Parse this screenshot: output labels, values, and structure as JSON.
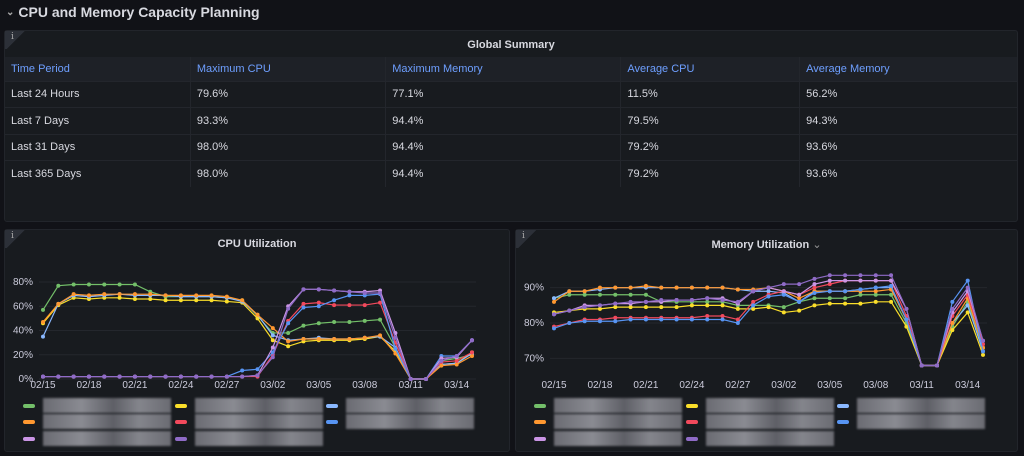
{
  "section": {
    "title": "CPU and Memory Capacity Planning"
  },
  "summary": {
    "title": "Global Summary",
    "info_icon": "i",
    "columns": [
      "Time Period",
      "Maximum CPU",
      "Maximum Memory",
      "Average CPU",
      "Average Memory"
    ],
    "rows": [
      [
        "Last 24 Hours",
        "79.6%",
        "77.1%",
        "11.5%",
        "56.2%"
      ],
      [
        "Last 7 Days",
        "93.3%",
        "94.4%",
        "79.5%",
        "94.3%"
      ],
      [
        "Last 31 Days",
        "98.0%",
        "94.4%",
        "79.2%",
        "93.6%"
      ],
      [
        "Last 365 Days",
        "98.0%",
        "94.4%",
        "79.2%",
        "93.6%"
      ]
    ]
  },
  "cpu_panel": {
    "title": "CPU Utilization",
    "info_icon": "i"
  },
  "mem_panel": {
    "title": "Memory Utilization",
    "menu_icon": "chevron-down-icon",
    "info_icon": "i"
  },
  "chart_data": [
    {
      "type": "line",
      "title": "CPU Utilization",
      "x": [
        "02/15",
        "02/16",
        "02/17",
        "02/18",
        "02/19",
        "02/20",
        "02/21",
        "02/22",
        "02/23",
        "02/24",
        "02/25",
        "02/26",
        "02/27",
        "02/28",
        "03/01",
        "03/02",
        "03/03",
        "03/04",
        "03/05",
        "03/06",
        "03/07",
        "03/08",
        "03/09",
        "03/10",
        "03/11",
        "03/12",
        "03/13",
        "03/14",
        "03/15"
      ],
      "xticks": [
        "02/15",
        "02/18",
        "02/21",
        "02/24",
        "02/27",
        "03/02",
        "03/05",
        "03/08",
        "03/11",
        "03/14"
      ],
      "yticks": [
        "0%",
        "20%",
        "40%",
        "60%",
        "80%"
      ],
      "ylim": [
        0,
        85
      ],
      "legend": "bottom",
      "series": [
        {
          "color": "#73bf69",
          "values": [
            57,
            77,
            78,
            78,
            78,
            78,
            78,
            72,
            68,
            68,
            68,
            68,
            67,
            65,
            52,
            38,
            38,
            44,
            46,
            47,
            47,
            48,
            49,
            26,
            0,
            0,
            15,
            17,
            20
          ]
        },
        {
          "color": "#fade2a",
          "values": [
            46,
            61,
            67,
            66,
            67,
            67,
            66,
            66,
            65,
            65,
            65,
            65,
            64,
            63,
            50,
            32,
            27,
            31,
            32,
            32,
            32,
            33,
            35,
            23,
            0,
            0,
            12,
            13,
            22
          ]
        },
        {
          "color": "#8ab8ff",
          "values": [
            35,
            62,
            69,
            68,
            69,
            70,
            69,
            69,
            69,
            68,
            68,
            68,
            67,
            64,
            53,
            36,
            32,
            33,
            34,
            33,
            33,
            34,
            35,
            26,
            0,
            0,
            12,
            13,
            21
          ]
        },
        {
          "color": "#ff9830",
          "values": [
            47,
            62,
            70,
            69,
            70,
            70,
            70,
            70,
            69,
            69,
            69,
            69,
            68,
            65,
            53,
            42,
            31,
            33,
            33,
            33,
            33,
            34,
            36,
            21,
            0,
            0,
            11,
            12,
            19
          ]
        },
        {
          "color": "#f2495c",
          "values": [
            2,
            2,
            2,
            2,
            2,
            2,
            2,
            2,
            2,
            2,
            2,
            2,
            2,
            2,
            2,
            20,
            48,
            62,
            63,
            61,
            61,
            61,
            63,
            30,
            0,
            0,
            14,
            15,
            22
          ]
        },
        {
          "color": "#5794f2",
          "values": [
            2,
            2,
            2,
            2,
            2,
            2,
            2,
            2,
            2,
            2,
            2,
            2,
            2,
            7,
            8,
            22,
            46,
            59,
            60,
            65,
            69,
            69,
            70,
            25,
            0,
            0,
            19,
            19,
            32
          ]
        },
        {
          "color": "#ca95e5",
          "values": [
            2,
            2,
            2,
            2,
            2,
            2,
            2,
            2,
            2,
            2,
            2,
            2,
            2,
            2,
            3,
            26,
            60,
            74,
            74,
            73,
            72,
            72,
            73,
            38,
            0,
            0,
            17,
            18,
            32
          ]
        },
        {
          "color": "#8f6bc7",
          "values": [
            2,
            2,
            2,
            2,
            2,
            2,
            2,
            2,
            2,
            2,
            2,
            2,
            2,
            2,
            3,
            18,
            58,
            74,
            74,
            73,
            72,
            71,
            71,
            34,
            0,
            0,
            15,
            19,
            32
          ]
        }
      ]
    },
    {
      "type": "line",
      "title": "Memory Utilization",
      "x": [
        "02/15",
        "02/16",
        "02/17",
        "02/18",
        "02/19",
        "02/20",
        "02/21",
        "02/22",
        "02/23",
        "02/24",
        "02/25",
        "02/26",
        "02/27",
        "02/28",
        "03/01",
        "03/02",
        "03/03",
        "03/04",
        "03/05",
        "03/06",
        "03/07",
        "03/08",
        "03/09",
        "03/10",
        "03/11",
        "03/12",
        "03/13",
        "03/14",
        "03/15"
      ],
      "xticks": [
        "02/15",
        "02/18",
        "02/21",
        "02/24",
        "02/27",
        "03/02",
        "03/05",
        "03/08",
        "03/11",
        "03/14"
      ],
      "yticks": [
        "70%",
        "80%",
        "90%"
      ],
      "ylim": [
        67,
        95
      ],
      "legend": "bottom",
      "series": [
        {
          "color": "#73bf69",
          "values": [
            87,
            88,
            88,
            88,
            88,
            88,
            88,
            86,
            86,
            86,
            86,
            86,
            85,
            85,
            85,
            84.5,
            86,
            87,
            87,
            87,
            88,
            88,
            88,
            80,
            68,
            68,
            79,
            86,
            73
          ]
        },
        {
          "color": "#fade2a",
          "values": [
            83,
            83.5,
            84,
            84,
            84.5,
            84.5,
            84.5,
            84.5,
            84.5,
            85,
            85,
            85,
            84,
            84,
            84.5,
            83,
            83.5,
            85,
            85.5,
            85.5,
            85.5,
            86,
            86,
            79,
            68,
            68,
            78,
            83,
            71
          ]
        },
        {
          "color": "#8ab8ff",
          "values": [
            87,
            89,
            89,
            89.5,
            90,
            90,
            90,
            90,
            90,
            90,
            90,
            90,
            89.5,
            89,
            89,
            88.5,
            86,
            89,
            89,
            89,
            89.5,
            90,
            90,
            81,
            68,
            68,
            80,
            85,
            72
          ]
        },
        {
          "color": "#ff9830",
          "values": [
            86,
            89,
            89,
            90,
            90,
            90,
            90.5,
            90,
            90,
            90,
            90,
            90,
            89.5,
            89.5,
            90,
            89,
            87,
            89,
            89,
            89,
            89,
            89,
            89.5,
            81,
            68,
            68,
            80,
            87,
            73
          ]
        },
        {
          "color": "#f2495c",
          "values": [
            79,
            80,
            81,
            81,
            81.5,
            81.5,
            81.5,
            81.5,
            81.5,
            81.5,
            82,
            82,
            81,
            86,
            88,
            89,
            88,
            90,
            91,
            92,
            92,
            92,
            92,
            82,
            68,
            68,
            82,
            88,
            74
          ]
        },
        {
          "color": "#5794f2",
          "values": [
            78.5,
            80,
            80.5,
            80.5,
            80.5,
            81,
            81,
            81,
            81,
            81,
            81,
            81,
            80,
            85,
            87.5,
            88,
            86,
            88.5,
            89,
            89,
            89.5,
            90,
            90.5,
            81,
            68,
            68,
            86,
            92,
            72
          ]
        },
        {
          "color": "#ca95e5",
          "values": [
            82.5,
            83.5,
            85,
            85,
            85.5,
            85.5,
            86,
            86,
            86.5,
            86.5,
            87,
            87,
            85.5,
            89,
            90,
            89,
            88,
            91,
            92,
            92,
            92,
            92,
            92,
            84,
            68,
            68,
            83,
            89,
            75
          ]
        },
        {
          "color": "#8f6bc7",
          "values": [
            82.5,
            83.5,
            84.5,
            85,
            85.5,
            86,
            86,
            86.5,
            86.5,
            86.5,
            87,
            86.5,
            86,
            89,
            90,
            91,
            91,
            92.5,
            93.5,
            93.5,
            93.5,
            93.5,
            93.5,
            84,
            68,
            68,
            84,
            90,
            75
          ]
        }
      ]
    }
  ]
}
